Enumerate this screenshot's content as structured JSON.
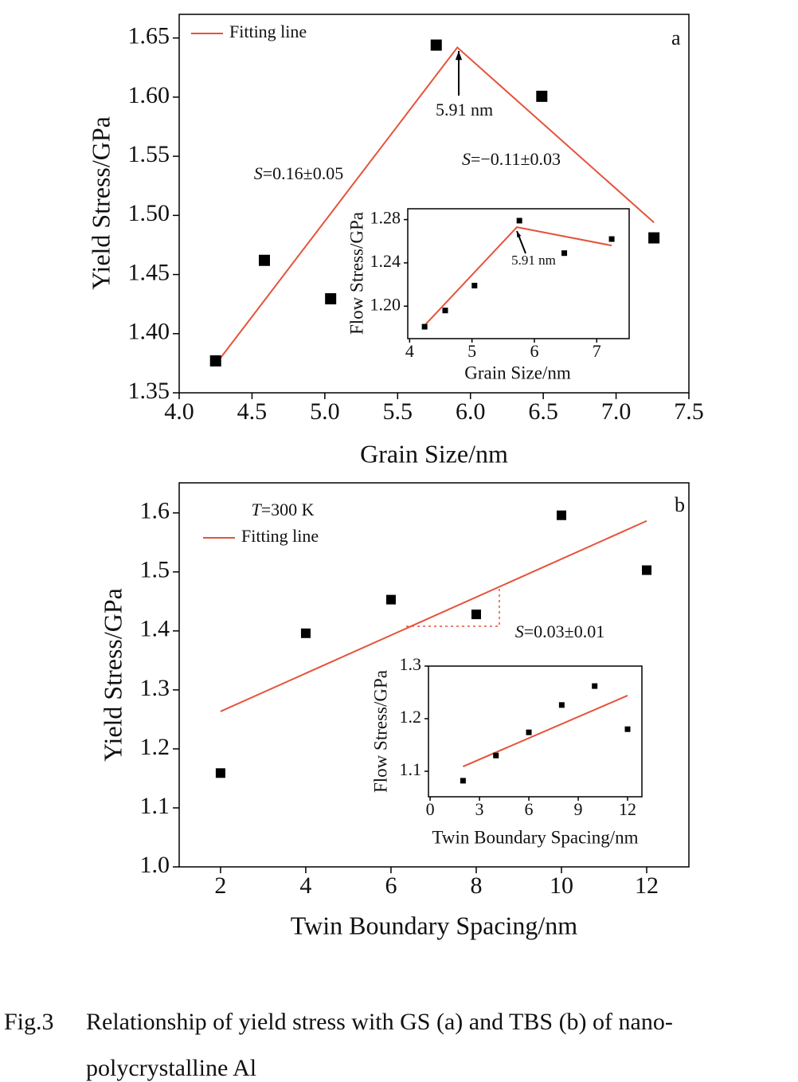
{
  "chart_data": [
    {
      "type": "scatter",
      "xlabel": "Grain Size/nm",
      "ylabel": "Yield Stress/GPa",
      "xlim": [
        4.0,
        7.5
      ],
      "ylim": [
        1.35,
        1.67
      ],
      "xticks": [
        {
          "value": 4,
          "label": "4.0"
        },
        4.5,
        {
          "value": 5,
          "label": "5.0"
        },
        5.5,
        {
          "value": 6,
          "label": "6.0"
        },
        6.5,
        {
          "value": 7,
          "label": "7.0"
        },
        7.5
      ],
      "yticks": [
        1.35,
        {
          "value": 1.4,
          "label": "1.40"
        },
        1.45,
        {
          "value": 1.5,
          "label": "1.50"
        },
        1.55,
        {
          "value": 1.6,
          "label": "1.60"
        },
        1.65
      ],
      "points": {
        "color": "#000000",
        "x": [
          4.25,
          4.585,
          5.04,
          5.765,
          6.49,
          7.26
        ],
        "values": [
          1.377,
          1.462,
          1.4295,
          1.644,
          1.6007,
          1.481
        ]
      },
      "fit_line": {
        "name": "Fitting line",
        "color": "#e5533a",
        "x": [
          4.25,
          5.91,
          7.26
        ],
        "values": [
          1.374,
          1.642,
          1.494
        ]
      },
      "annotations": [
        "a",
        "5.91 nm",
        "S=0.16±0.05",
        "S=−0.11±0.03"
      ]
    },
    {
      "type": "scatter",
      "xlabel": "Grain Size/nm",
      "ylabel": "Flow Stress/GPa",
      "xlim": [
        3.97,
        7.52
      ],
      "ylim": [
        1.17,
        1.29
      ],
      "xticks": [
        4,
        5,
        6,
        7
      ],
      "yticks": [
        {
          "value": 1.2,
          "label": "1.20"
        },
        1.24,
        1.28
      ],
      "points": {
        "color": "#000000",
        "x": [
          4.24,
          4.57,
          5.04,
          5.76,
          6.48,
          7.24
        ],
        "values": [
          1.181,
          1.196,
          1.219,
          1.279,
          1.249,
          1.262
        ]
      },
      "fit_line": {
        "color": "#e5533a",
        "x": [
          4.22,
          5.72,
          7.24
        ],
        "values": [
          1.181,
          1.273,
          1.256
        ]
      },
      "annotations": [
        "5.91 nm"
      ]
    },
    {
      "type": "scatter",
      "xlabel": "Twin Boundary Spacing/nm",
      "ylabel": "Yield Stress/GPa",
      "xlim": [
        1.03,
        12.99
      ],
      "ylim": [
        1.0,
        1.651
      ],
      "xticks": [
        2,
        4,
        6,
        8,
        10,
        12
      ],
      "yticks": [
        {
          "value": 1.0,
          "label": "1.0"
        },
        1.1,
        1.2,
        1.3,
        1.4,
        1.5,
        1.6
      ],
      "points": {
        "color": "#000000",
        "x": [
          2,
          4,
          6,
          8,
          10,
          12
        ],
        "values": [
          1.159,
          1.396,
          1.453,
          1.428,
          1.596,
          1.503
        ]
      },
      "fit_line": {
        "name": "Fitting line",
        "color": "#e5533a",
        "x": [
          2,
          12
        ],
        "values": [
          1.2635,
          1.5865
        ]
      },
      "annotations": [
        "b",
        "T=300 K",
        "S=0.03±0.01"
      ]
    },
    {
      "type": "scatter",
      "xlabel": "Twin Boundary Spacing/nm",
      "ylabel": "Flow Stress/GPa",
      "xlim": [
        -0.1,
        12.87
      ],
      "ylim": [
        1.0515,
        1.3
      ],
      "xticks": [
        0,
        3,
        6,
        9,
        12
      ],
      "yticks": [
        1.1,
        1.2,
        1.3
      ],
      "points": {
        "color": "#000000",
        "x": [
          2,
          4,
          6,
          8,
          10,
          12
        ],
        "values": [
          1.082,
          1.13,
          1.174,
          1.226,
          1.262,
          1.18
        ]
      },
      "fit_line": {
        "color": "#e5533a",
        "x": [
          2,
          12
        ],
        "values": [
          1.109,
          1.244
        ]
      },
      "annotations": []
    }
  ],
  "caption": {
    "label": "Fig.3",
    "lines": [
      "Relationship of yield stress with GS (a) and TBS (b) of nano-",
      "polycrystalline Al"
    ]
  }
}
